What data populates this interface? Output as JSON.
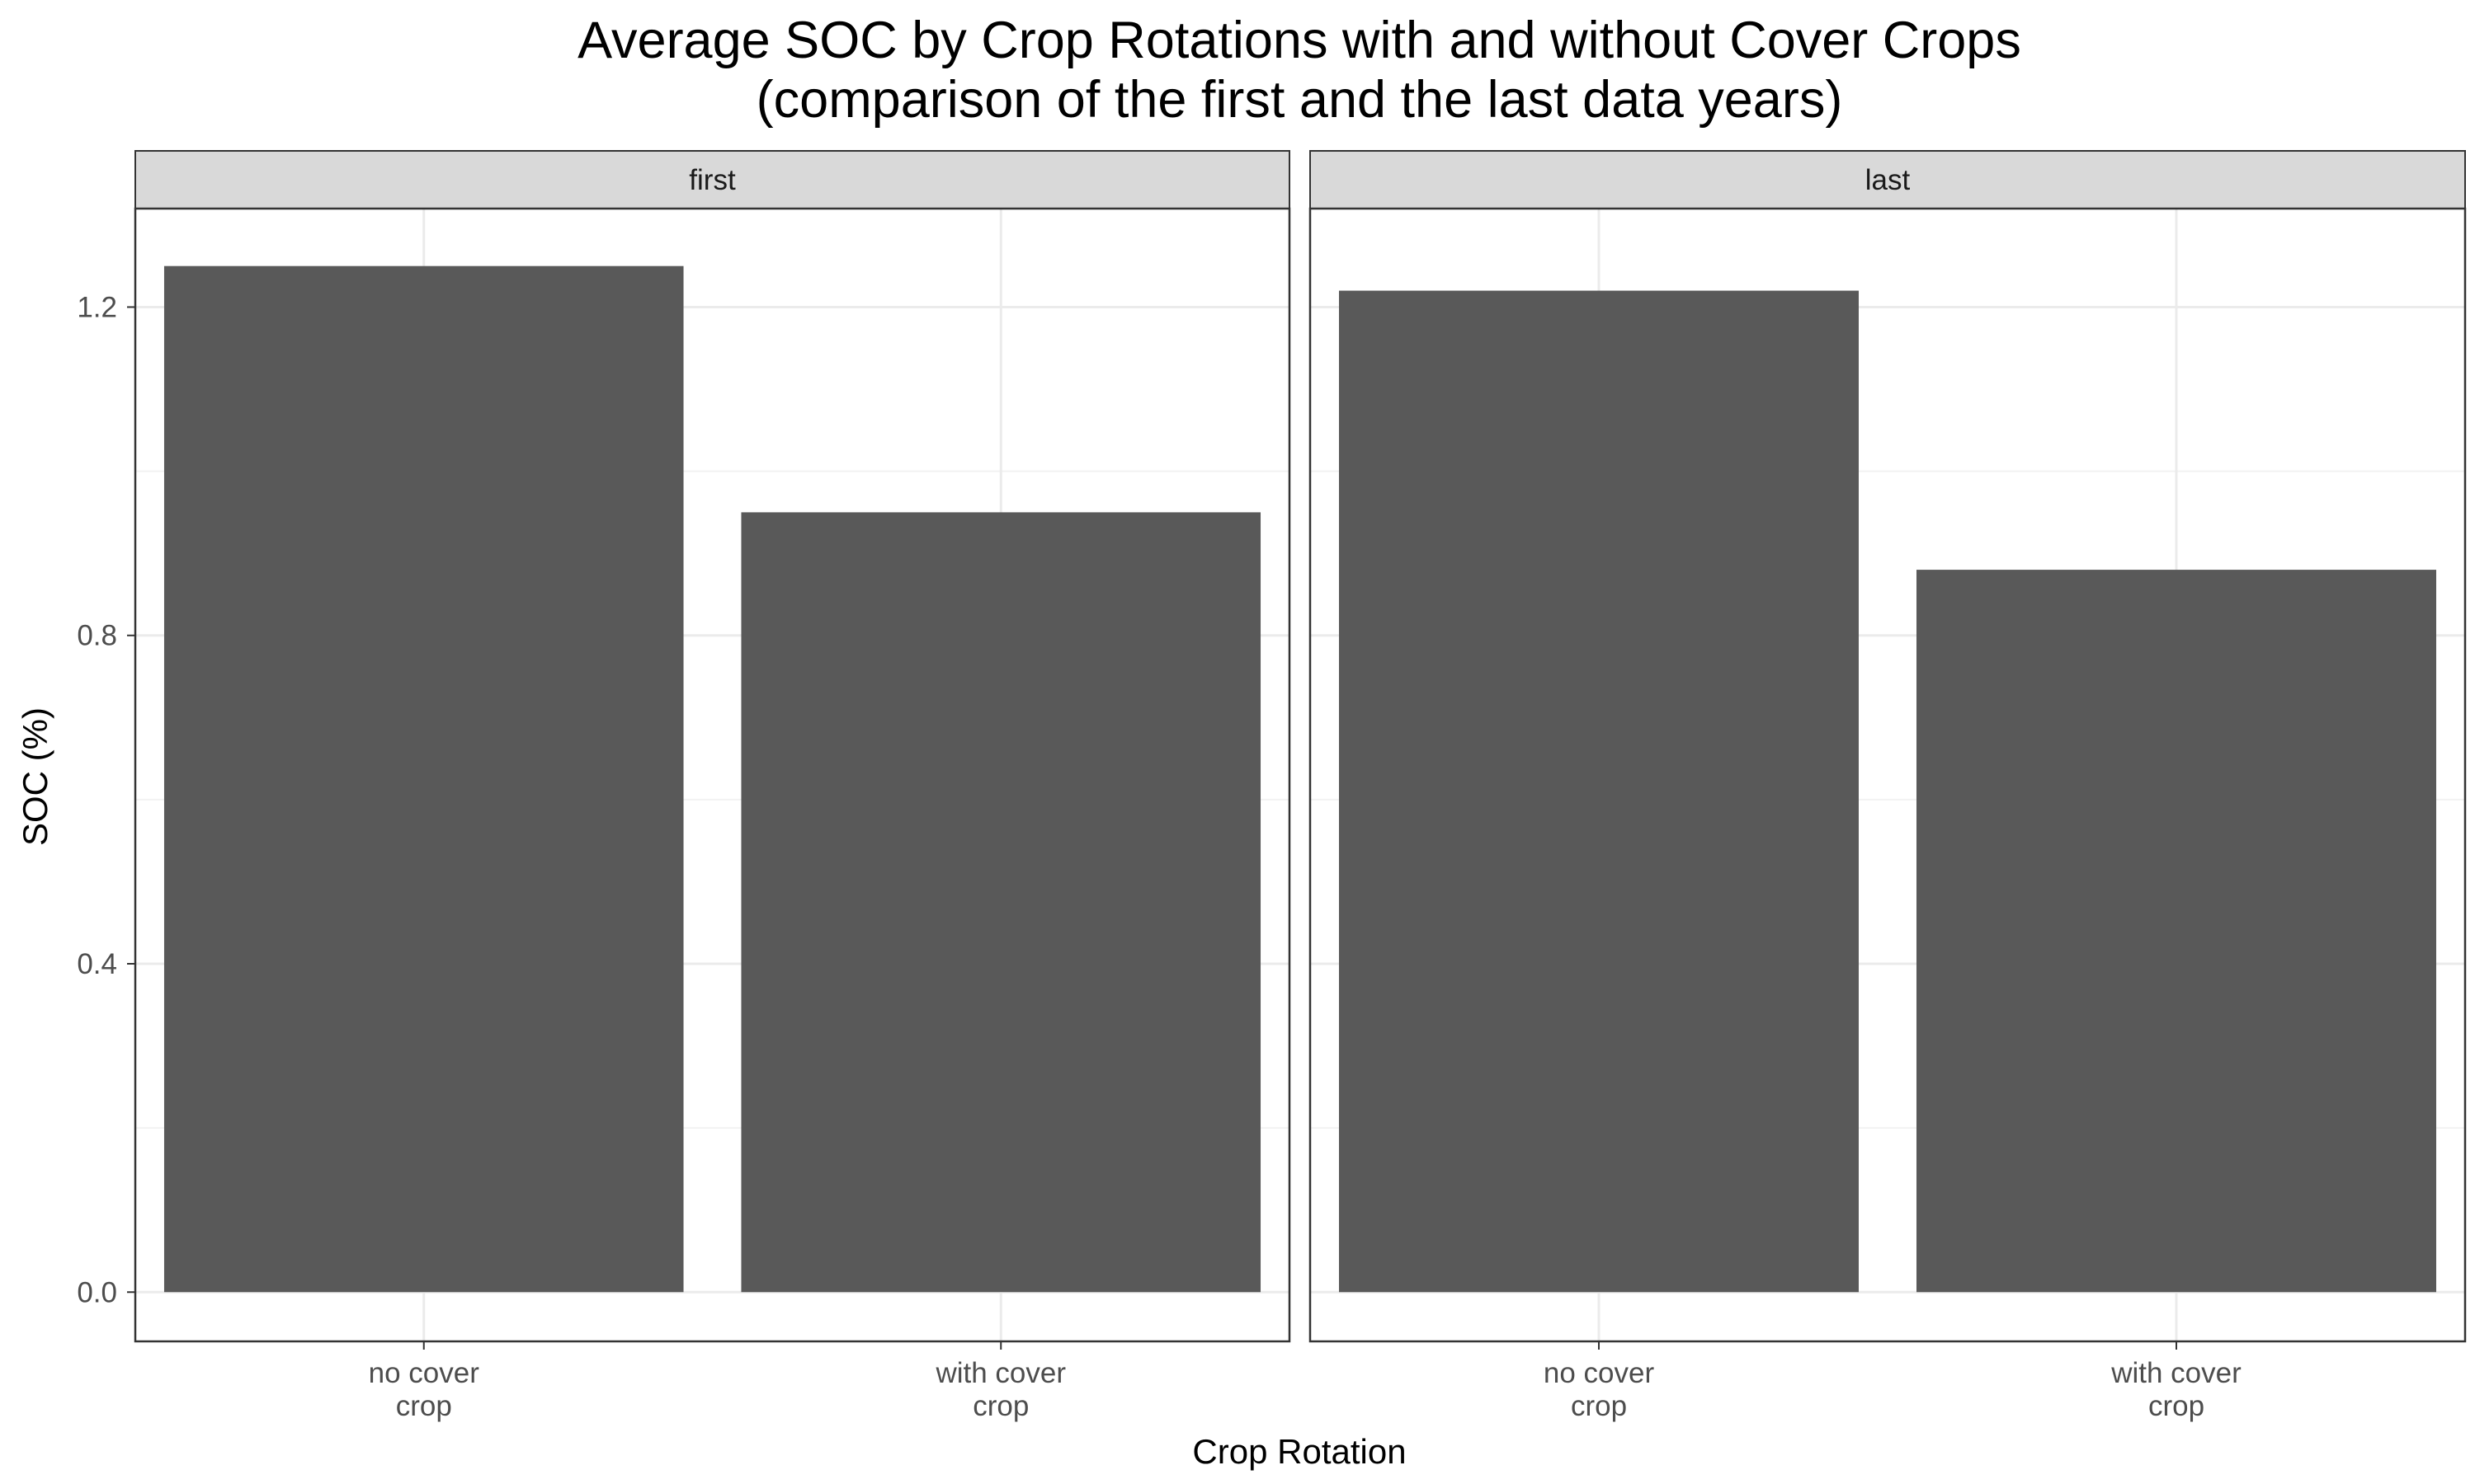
{
  "chart_data": {
    "type": "bar",
    "title": [
      "Average SOC by Crop Rotations with and without Cover Crops",
      "(comparison of the first and the last data years)"
    ],
    "xlabel": "Crop Rotation",
    "ylabel": "SOC (%)",
    "ylim": [
      -0.06,
      1.32
    ],
    "yticks": [
      0.0,
      0.4,
      0.8,
      1.2
    ],
    "ytick_labels": [
      "0.0",
      "0.4",
      "0.8",
      "1.2"
    ],
    "categories": [
      [
        "no cover",
        "crop"
      ],
      [
        "with cover",
        "crop"
      ]
    ],
    "grid": true,
    "bar_color": "#595959",
    "panels": [
      {
        "name": "first",
        "values": [
          1.25,
          0.95
        ]
      },
      {
        "name": "last",
        "values": [
          1.22,
          0.88
        ]
      }
    ]
  }
}
